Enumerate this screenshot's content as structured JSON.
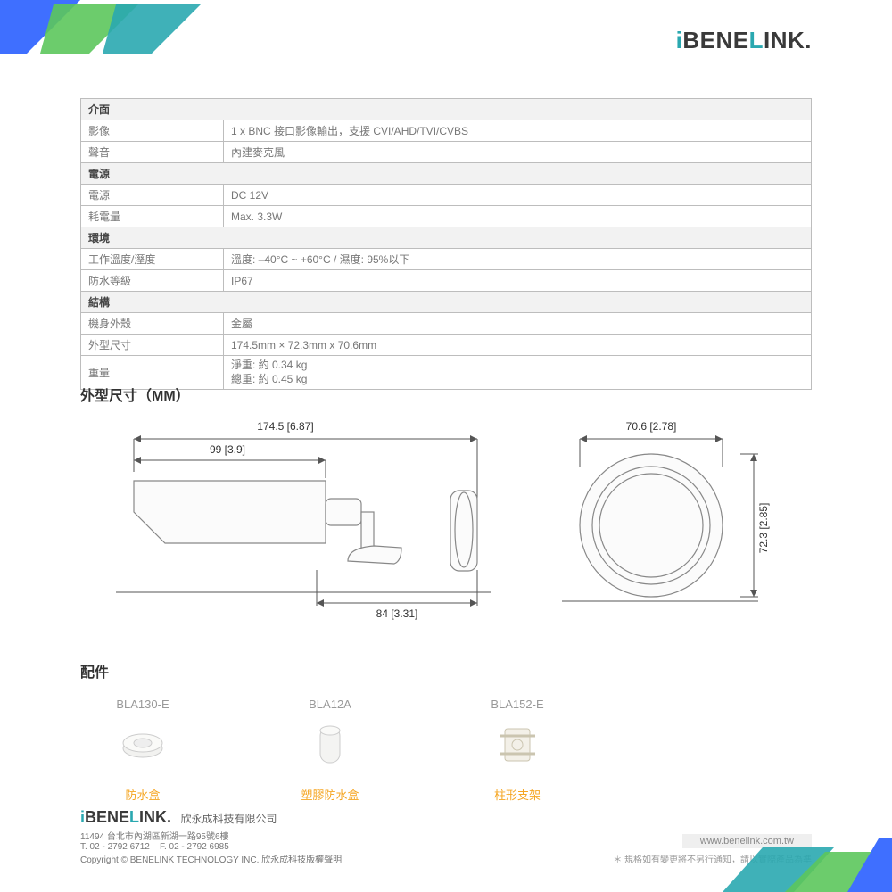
{
  "brand": "BENELINK",
  "colors": {
    "accent_teal": "#2aa8b0",
    "accent_green": "#5cc65c",
    "accent_blue": "#3f6fff",
    "border": "#bdbdbd",
    "text_muted": "#777",
    "section_bg": "#f2f2f2",
    "acc_name": "#f5a623"
  },
  "spec": {
    "sections": [
      {
        "header": "介面",
        "rows": [
          {
            "label": "影像",
            "value": "1 x BNC 接口影像輸出，支援 CVI/AHD/TVI/CVBS"
          },
          {
            "label": "聲音",
            "value": "內建麥克風"
          }
        ]
      },
      {
        "header": "電源",
        "rows": [
          {
            "label": "電源",
            "value": "DC 12V"
          },
          {
            "label": "耗電量",
            "value": "Max. 3.3W"
          }
        ]
      },
      {
        "header": "環境",
        "rows": [
          {
            "label": "工作溫度/溼度",
            "value": "溫度: –40°C ~ +60°C  /  濕度: 95%以下"
          },
          {
            "label": "防水等級",
            "value": "IP67"
          }
        ]
      },
      {
        "header": "結構",
        "rows": [
          {
            "label": "機身外殼",
            "value": "金屬"
          },
          {
            "label": "外型尺寸",
            "value": "174.5mm × 72.3mm x 70.6mm"
          },
          {
            "label": "重量",
            "value_lines": [
              "淨重: 約 0.34 kg",
              "總重: 約 0.45 kg"
            ]
          }
        ]
      }
    ]
  },
  "dimensions": {
    "title": "外型尺寸（MM）",
    "side": {
      "total_length": "174.5 [6.87]",
      "hood_length": "99 [3.9]",
      "base_length": "84 [3.31]"
    },
    "front": {
      "width": "70.6 [2.78]",
      "height": "72.3 [2.85]"
    }
  },
  "accessories": {
    "title": "配件",
    "items": [
      {
        "model": "BLA130-E",
        "name": "防水盒",
        "icon": "mount-box"
      },
      {
        "model": "BLA12A",
        "name": "塑膠防水盒",
        "icon": "plastic-box"
      },
      {
        "model": "BLA152-E",
        "name": "柱形支架",
        "icon": "pole-bracket"
      }
    ]
  },
  "footer": {
    "company": "欣永成科技有限公司",
    "address": "11494 台北市內湖區新湖一路95號6樓",
    "tel": "T. 02 - 2792 6712",
    "fax": "F. 02 - 2792 6985",
    "copyright": "Copyright © BENELINK TECHNOLOGY INC. 欣永成科技版權聲明",
    "url": "www.benelink.com.tw",
    "note": "＊ 規格如有變更將不另行通知，請以實際產品為準"
  }
}
